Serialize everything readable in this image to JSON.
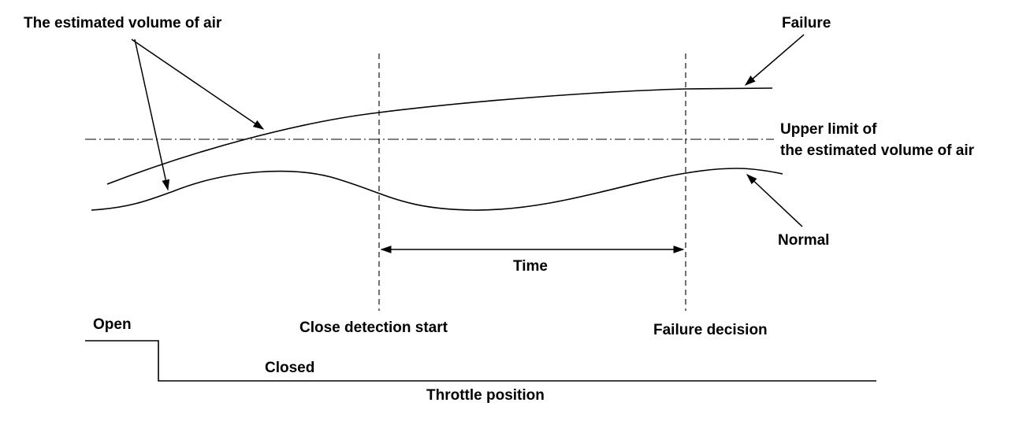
{
  "labels": {
    "estimated_volume": "The estimated volume of air",
    "failure": "Failure",
    "upper_limit_line1": "Upper limit of",
    "upper_limit_line2": "the estimated volume of air",
    "normal": "Normal",
    "time": "Time",
    "close_detection_start": "Close detection start",
    "failure_decision": "Failure decision",
    "open": "Open",
    "closed": "Closed",
    "throttle_position": "Throttle position"
  }
}
